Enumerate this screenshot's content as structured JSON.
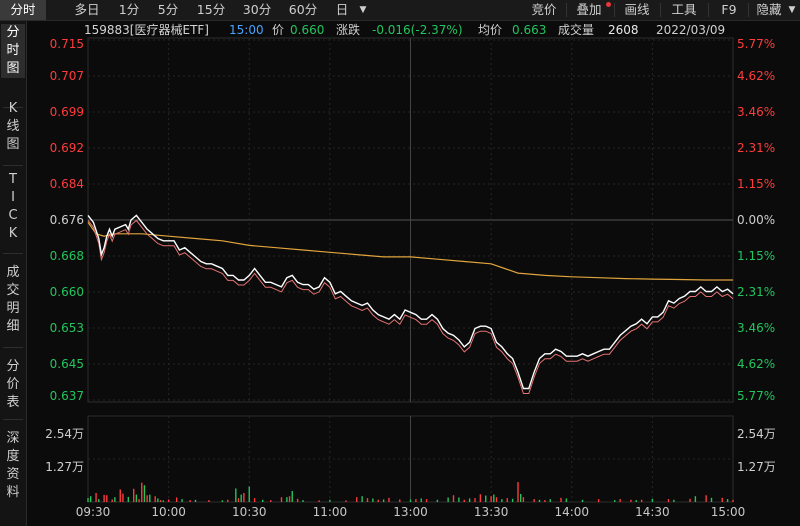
{
  "toolbar": {
    "period_tabs": [
      "分时",
      "多日",
      "1分",
      "5分",
      "15分",
      "30分",
      "60分",
      "日"
    ],
    "dropdown_icon": "caret-down-icon",
    "right_buttons": [
      "竞价",
      "叠加",
      "画线",
      "工具",
      "F9",
      "隐藏"
    ],
    "hide_icon": "chevron-down-icon"
  },
  "sidebar": {
    "tabs": [
      "分\n时\n图",
      "K\n线\n图",
      "T\nI\nC\nK",
      "成\n交\n明\n细",
      "分\n价\n表",
      "深\n度\n资\n料"
    ]
  },
  "info_bar": {
    "code_name": "159883[医疗器械ETF]",
    "time": "15:00",
    "price_label": "价",
    "price": "0.660",
    "change_label": "涨跌",
    "change": "-0.016(-2.37%)",
    "avg_label": "均价",
    "avg": "0.663",
    "volume_label": "成交量",
    "volume": "2608",
    "date": "2022/03/09"
  },
  "colors": {
    "up": "#ff3b3b",
    "down": "#22c55e",
    "flat": "#cfcfcf",
    "price_line": "#ffffff",
    "avg_line": "#e0a43c",
    "grid": "#2a2a2a",
    "bg": "#0b0b0b"
  },
  "chart_data": {
    "type": "line",
    "prev_close": 0.676,
    "price_axis": {
      "labels": [
        "0.715",
        "0.707",
        "0.699",
        "0.692",
        "0.684",
        "0.676",
        "0.668",
        "0.660",
        "0.653",
        "0.645",
        "0.637"
      ],
      "range": [
        0.637,
        0.715
      ]
    },
    "pct_axis": {
      "labels": [
        "5.77%",
        "4.62%",
        "3.46%",
        "2.31%",
        "1.15%",
        "0.00%",
        "1.15%",
        "2.31%",
        "3.46%",
        "4.62%",
        "5.77%"
      ]
    },
    "volume_axis": {
      "labels": [
        "2.54万",
        "1.27万"
      ],
      "max": 25400
    },
    "time_labels": [
      "09:30",
      "10:00",
      "10:30",
      "11:00",
      "13:00",
      "13:30",
      "14:00",
      "14:30",
      "15:00"
    ],
    "price_points": [
      [
        0,
        0.677
      ],
      [
        2,
        0.6755
      ],
      [
        4,
        0.672
      ],
      [
        5,
        0.6685
      ],
      [
        6,
        0.67
      ],
      [
        7,
        0.6725
      ],
      [
        8,
        0.674
      ],
      [
        9,
        0.6725
      ],
      [
        10,
        0.674
      ],
      [
        12,
        0.6745
      ],
      [
        14,
        0.675
      ],
      [
        15,
        0.674
      ],
      [
        16,
        0.676
      ],
      [
        18,
        0.677
      ],
      [
        20,
        0.6755
      ],
      [
        22,
        0.674
      ],
      [
        24,
        0.673
      ],
      [
        26,
        0.672
      ],
      [
        28,
        0.6715
      ],
      [
        30,
        0.6715
      ],
      [
        32,
        0.6715
      ],
      [
        34,
        0.6695
      ],
      [
        36,
        0.67
      ],
      [
        38,
        0.669
      ],
      [
        40,
        0.668
      ],
      [
        42,
        0.667
      ],
      [
        44,
        0.6665
      ],
      [
        46,
        0.6665
      ],
      [
        48,
        0.666
      ],
      [
        50,
        0.6655
      ],
      [
        52,
        0.664
      ],
      [
        54,
        0.664
      ],
      [
        56,
        0.663
      ],
      [
        58,
        0.663
      ],
      [
        60,
        0.664
      ],
      [
        62,
        0.6655
      ],
      [
        64,
        0.664
      ],
      [
        66,
        0.6625
      ],
      [
        68,
        0.6625
      ],
      [
        70,
        0.662
      ],
      [
        72,
        0.6615
      ],
      [
        74,
        0.6635
      ],
      [
        76,
        0.664
      ],
      [
        78,
        0.6625
      ],
      [
        80,
        0.662
      ],
      [
        82,
        0.662
      ],
      [
        84,
        0.661
      ],
      [
        86,
        0.6615
      ],
      [
        88,
        0.6635
      ],
      [
        90,
        0.6625
      ],
      [
        92,
        0.66
      ],
      [
        94,
        0.6605
      ],
      [
        96,
        0.6595
      ],
      [
        98,
        0.6585
      ],
      [
        100,
        0.658
      ],
      [
        102,
        0.6575
      ],
      [
        104,
        0.658
      ],
      [
        106,
        0.6565
      ],
      [
        108,
        0.6555
      ],
      [
        110,
        0.655
      ],
      [
        112,
        0.6545
      ],
      [
        114,
        0.6555
      ],
      [
        116,
        0.6545
      ],
      [
        118,
        0.6565
      ],
      [
        120,
        0.656
      ],
      [
        122,
        0.6555
      ],
      [
        124,
        0.6545
      ],
      [
        126,
        0.6545
      ],
      [
        128,
        0.6555
      ],
      [
        130,
        0.6545
      ],
      [
        132,
        0.6525
      ],
      [
        134,
        0.6515
      ],
      [
        136,
        0.651
      ],
      [
        138,
        0.65
      ],
      [
        140,
        0.6485
      ],
      [
        142,
        0.6495
      ],
      [
        144,
        0.6525
      ],
      [
        146,
        0.653
      ],
      [
        148,
        0.653
      ],
      [
        150,
        0.6525
      ],
      [
        152,
        0.6495
      ],
      [
        154,
        0.6485
      ],
      [
        156,
        0.647
      ],
      [
        158,
        0.646
      ],
      [
        160,
        0.643
      ],
      [
        162,
        0.6395
      ],
      [
        164,
        0.6395
      ],
      [
        166,
        0.643
      ],
      [
        168,
        0.646
      ],
      [
        170,
        0.647
      ],
      [
        172,
        0.647
      ],
      [
        174,
        0.648
      ],
      [
        176,
        0.6475
      ],
      [
        178,
        0.6465
      ],
      [
        180,
        0.6465
      ],
      [
        182,
        0.6465
      ],
      [
        184,
        0.647
      ],
      [
        186,
        0.6465
      ],
      [
        188,
        0.647
      ],
      [
        190,
        0.6475
      ],
      [
        192,
        0.648
      ],
      [
        194,
        0.648
      ],
      [
        196,
        0.6495
      ],
      [
        198,
        0.651
      ],
      [
        200,
        0.652
      ],
      [
        202,
        0.653
      ],
      [
        204,
        0.6535
      ],
      [
        206,
        0.6545
      ],
      [
        208,
        0.6535
      ],
      [
        210,
        0.655
      ],
      [
        212,
        0.655
      ],
      [
        214,
        0.656
      ],
      [
        216,
        0.6585
      ],
      [
        218,
        0.658
      ],
      [
        220,
        0.659
      ],
      [
        222,
        0.6595
      ],
      [
        224,
        0.6605
      ],
      [
        226,
        0.6605
      ],
      [
        228,
        0.6615
      ],
      [
        230,
        0.6605
      ],
      [
        232,
        0.6605
      ],
      [
        234,
        0.6615
      ],
      [
        236,
        0.6605
      ],
      [
        238,
        0.661
      ],
      [
        240,
        0.66
      ]
    ],
    "avg_points": [
      [
        0,
        0.6755
      ],
      [
        3,
        0.673
      ],
      [
        6,
        0.6725
      ],
      [
        10,
        0.673
      ],
      [
        15,
        0.673
      ],
      [
        20,
        0.673
      ],
      [
        30,
        0.6725
      ],
      [
        40,
        0.672
      ],
      [
        50,
        0.6715
      ],
      [
        60,
        0.6705
      ],
      [
        70,
        0.67
      ],
      [
        80,
        0.6695
      ],
      [
        90,
        0.669
      ],
      [
        100,
        0.6685
      ],
      [
        110,
        0.668
      ],
      [
        120,
        0.668
      ],
      [
        130,
        0.6675
      ],
      [
        140,
        0.667
      ],
      [
        150,
        0.6665
      ],
      [
        155,
        0.6655
      ],
      [
        160,
        0.6645
      ],
      [
        170,
        0.664
      ],
      [
        180,
        0.6637
      ],
      [
        190,
        0.6635
      ],
      [
        200,
        0.6633
      ],
      [
        210,
        0.6632
      ],
      [
        220,
        0.6631
      ],
      [
        230,
        0.663
      ],
      [
        240,
        0.663
      ]
    ],
    "volume_bars": [
      [
        0,
        1200,
        "down"
      ],
      [
        1,
        1800,
        "down"
      ],
      [
        3,
        2800,
        "up"
      ],
      [
        4,
        900,
        "down"
      ],
      [
        6,
        2200,
        "up"
      ],
      [
        7,
        2100,
        "up"
      ],
      [
        9,
        800,
        "up"
      ],
      [
        10,
        1500,
        "down"
      ],
      [
        12,
        3900,
        "up"
      ],
      [
        13,
        2600,
        "up"
      ],
      [
        15,
        1600,
        "down"
      ],
      [
        17,
        4100,
        "up"
      ],
      [
        18,
        2300,
        "down"
      ],
      [
        19,
        900,
        "up"
      ],
      [
        20,
        6000,
        "up"
      ],
      [
        21,
        5200,
        "down"
      ],
      [
        22,
        2100,
        "up"
      ],
      [
        23,
        2300,
        "down"
      ],
      [
        25,
        1800,
        "up"
      ],
      [
        26,
        1100,
        "down"
      ],
      [
        27,
        600,
        "up"
      ],
      [
        28,
        500,
        "down"
      ],
      [
        30,
        800,
        "up"
      ],
      [
        33,
        1400,
        "up"
      ],
      [
        35,
        900,
        "down"
      ],
      [
        38,
        600,
        "up"
      ],
      [
        40,
        700,
        "down"
      ],
      [
        45,
        600,
        "up"
      ],
      [
        50,
        500,
        "down"
      ],
      [
        52,
        700,
        "up"
      ],
      [
        55,
        4200,
        "down"
      ],
      [
        56,
        1200,
        "up"
      ],
      [
        57,
        2300,
        "down"
      ],
      [
        58,
        2800,
        "up"
      ],
      [
        60,
        4800,
        "down"
      ],
      [
        62,
        1200,
        "up"
      ],
      [
        65,
        700,
        "down"
      ],
      [
        68,
        600,
        "up"
      ],
      [
        72,
        1500,
        "up"
      ],
      [
        74,
        1500,
        "down"
      ],
      [
        75,
        1800,
        "up"
      ],
      [
        76,
        3400,
        "down"
      ],
      [
        78,
        1000,
        "up"
      ],
      [
        80,
        600,
        "down"
      ],
      [
        86,
        500,
        "up"
      ],
      [
        90,
        700,
        "down"
      ],
      [
        96,
        500,
        "up"
      ],
      [
        100,
        1500,
        "up"
      ],
      [
        102,
        1800,
        "down"
      ],
      [
        104,
        1200,
        "up"
      ],
      [
        106,
        1100,
        "down"
      ],
      [
        108,
        700,
        "up"
      ],
      [
        110,
        800,
        "down"
      ],
      [
        112,
        1300,
        "up"
      ],
      [
        116,
        800,
        "up"
      ],
      [
        120,
        800,
        "down"
      ],
      [
        122,
        900,
        "up"
      ],
      [
        124,
        1100,
        "down"
      ],
      [
        126,
        900,
        "up"
      ],
      [
        130,
        700,
        "down"
      ],
      [
        134,
        1400,
        "down"
      ],
      [
        136,
        2100,
        "up"
      ],
      [
        138,
        1400,
        "down"
      ],
      [
        140,
        700,
        "up"
      ],
      [
        142,
        1100,
        "down"
      ],
      [
        144,
        1200,
        "up"
      ],
      [
        146,
        2400,
        "up"
      ],
      [
        148,
        2000,
        "down"
      ],
      [
        150,
        1800,
        "up"
      ],
      [
        151,
        2300,
        "down"
      ],
      [
        152,
        1500,
        "up"
      ],
      [
        154,
        900,
        "down"
      ],
      [
        156,
        1200,
        "up"
      ],
      [
        158,
        1000,
        "down"
      ],
      [
        160,
        6200,
        "up"
      ],
      [
        161,
        2500,
        "down"
      ],
      [
        162,
        1500,
        "up"
      ],
      [
        166,
        900,
        "up"
      ],
      [
        168,
        700,
        "down"
      ],
      [
        170,
        600,
        "up"
      ],
      [
        172,
        900,
        "down"
      ],
      [
        176,
        1300,
        "up"
      ],
      [
        178,
        1100,
        "down"
      ],
      [
        184,
        700,
        "down"
      ],
      [
        190,
        900,
        "up"
      ],
      [
        196,
        600,
        "down"
      ],
      [
        198,
        900,
        "up"
      ],
      [
        202,
        700,
        "up"
      ],
      [
        204,
        600,
        "down"
      ],
      [
        206,
        700,
        "up"
      ],
      [
        210,
        1000,
        "down"
      ],
      [
        216,
        900,
        "up"
      ],
      [
        218,
        700,
        "down"
      ],
      [
        224,
        1000,
        "up"
      ],
      [
        226,
        1800,
        "down"
      ],
      [
        230,
        2100,
        "up"
      ],
      [
        232,
        1300,
        "down"
      ],
      [
        236,
        1300,
        "up"
      ],
      [
        238,
        900,
        "down"
      ],
      [
        240,
        700,
        "up"
      ]
    ]
  }
}
